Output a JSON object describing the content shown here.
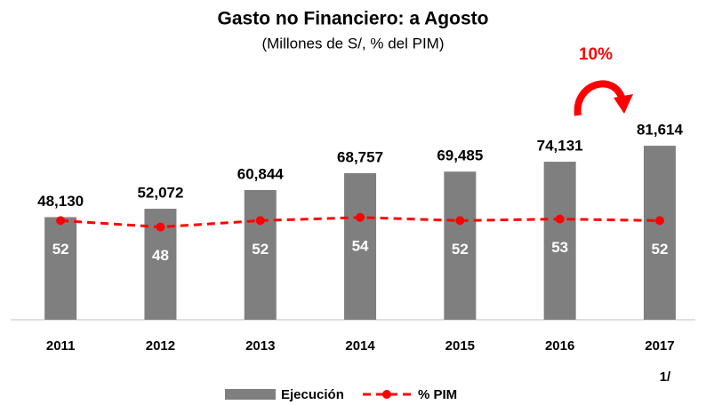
{
  "chart_data": {
    "type": "bar+line",
    "title": "Gasto no Financiero: a Agosto",
    "subtitle": "(Millones de S/, % del PIM)",
    "categories": [
      "2011",
      "2012",
      "2013",
      "2014",
      "2015",
      "2016",
      "2017"
    ],
    "category_note": "1/",
    "series": [
      {
        "name": "Ejecución",
        "type": "bar",
        "color": "#7f7f7f",
        "values": [
          48130,
          52072,
          60844,
          68757,
          69485,
          74131,
          81614
        ],
        "value_labels": [
          "48,130",
          "52,072",
          "60,844",
          "68,757",
          "69,485",
          "74,131",
          "81,614"
        ]
      },
      {
        "name": "% PIM",
        "type": "line",
        "axis": "y2",
        "color": "#ff0000",
        "values": [
          52,
          48,
          52,
          54,
          52,
          53,
          52
        ]
      }
    ],
    "ylim": [
      0,
      90000
    ],
    "y2lim": [
      -10,
      110
    ],
    "annotation": "10%",
    "legend": "bottom"
  }
}
